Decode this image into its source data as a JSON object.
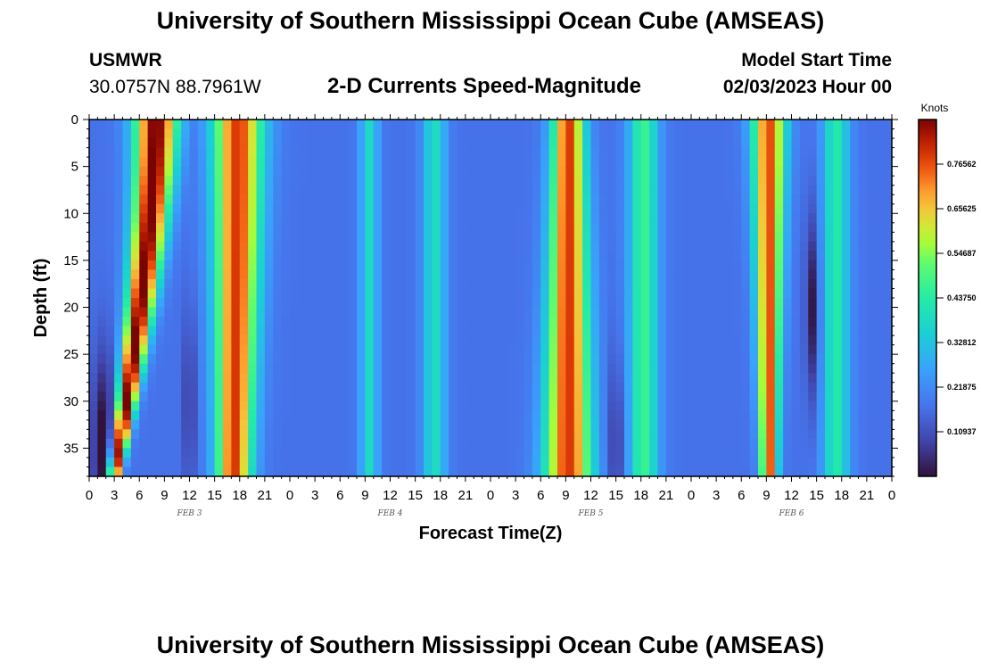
{
  "header": {
    "title": "University of Southern Mississippi Ocean Cube (AMSEAS)",
    "station_id": "USMWR",
    "station_coords": "30.0757N  88.7961W",
    "subtitle": "2-D Currents Speed-Magnitude",
    "model_start_label": "Model Start Time",
    "model_start_value": "02/03/2023 Hour 00"
  },
  "footer": {
    "title": "University of Southern Mississippi Ocean Cube (AMSEAS)"
  },
  "chart_data": {
    "type": "heatmap",
    "title": "2-D Currents Speed-Magnitude",
    "xlabel": "Forecast Time(Z)",
    "ylabel": "Depth (ft)",
    "xlim": [
      0,
      96
    ],
    "ylim": [
      0,
      38
    ],
    "x_tick_values": [
      0,
      3,
      6,
      9,
      12,
      15,
      18,
      21,
      24,
      27,
      30,
      33,
      36,
      39,
      42,
      45,
      48,
      51,
      54,
      57,
      60,
      63,
      66,
      69,
      72,
      75,
      78,
      81,
      84,
      87,
      90,
      93,
      96
    ],
    "x_tick_labels": [
      "0",
      "3",
      "6",
      "9",
      "12",
      "15",
      "18",
      "21",
      "0",
      "3",
      "6",
      "9",
      "12",
      "15",
      "18",
      "21",
      "0",
      "3",
      "6",
      "9",
      "12",
      "15",
      "18",
      "21",
      "0",
      "3",
      "6",
      "9",
      "12",
      "15",
      "18",
      "21",
      "0"
    ],
    "y_tick_values": [
      0,
      5,
      10,
      15,
      20,
      25,
      30,
      35
    ],
    "y_tick_labels": [
      "0",
      "5",
      "10",
      "15",
      "20",
      "25",
      "30",
      "35"
    ],
    "day_labels": [
      {
        "text": "FEB 3",
        "hour": 12
      },
      {
        "text": "FEB 4",
        "hour": 36
      },
      {
        "text": "FEB 5",
        "hour": 60
      },
      {
        "text": "FEB 6",
        "hour": 84
      }
    ],
    "colorbar": {
      "unit": "Knots",
      "range": [
        0.0,
        0.875
      ],
      "tick_values": [
        0.109375,
        0.21875,
        0.328125,
        0.4375,
        0.546875,
        0.65625,
        0.765625
      ],
      "tick_labels": [
        "0.10937",
        "0.21875",
        "0.32812",
        "0.43750",
        "0.54687",
        "0.65625",
        "0.76562"
      ]
    },
    "speed_features": [
      {
        "center_hour": 8.0,
        "width_hours": 2.6,
        "amplitude": 0.72,
        "shape": "v",
        "shift": 5.0,
        "spread": 0.7
      },
      {
        "center_hour": 17.8,
        "width_hours": 3.0,
        "amplitude": 0.62,
        "shape": "v",
        "shift": 0.5,
        "spread": 0.3
      },
      {
        "center_hour": 33.5,
        "width_hours": 1.1,
        "amplitude": 0.21,
        "shape": "flat",
        "shift": 0,
        "spread": 0
      },
      {
        "center_hour": 41.3,
        "width_hours": 1.4,
        "amplitude": 0.22,
        "shape": "flat",
        "shift": 0,
        "spread": 0
      },
      {
        "center_hour": 57.3,
        "width_hours": 1.9,
        "amplitude": 0.62,
        "shape": "a",
        "shift": 0,
        "spread": 0.5
      },
      {
        "center_hour": 66.3,
        "width_hours": 1.8,
        "amplitude": 0.3,
        "shape": "flat",
        "shift": 0,
        "spread": 0
      },
      {
        "center_hour": 81.3,
        "width_hours": 2.0,
        "amplitude": 0.6,
        "shape": "v",
        "shift": 0,
        "spread": 0.5
      },
      {
        "center_hour": 89.3,
        "width_hours": 1.6,
        "amplitude": 0.26,
        "shape": "flat",
        "shift": 0,
        "spread": 0
      }
    ],
    "low_speed_features": [
      {
        "center_hour": 1.8,
        "depth_ft": 35,
        "width_hours": 1.4,
        "strength": 0.2
      },
      {
        "center_hour": 12.0,
        "depth_ft": 30,
        "width_hours": 0.8,
        "strength": 0.1
      },
      {
        "center_hour": 63.0,
        "depth_ft": 35,
        "width_hours": 1.2,
        "strength": 0.1
      },
      {
        "center_hour": 86.5,
        "depth_ft": 20,
        "width_hours": 0.8,
        "strength": 0.17
      }
    ]
  }
}
